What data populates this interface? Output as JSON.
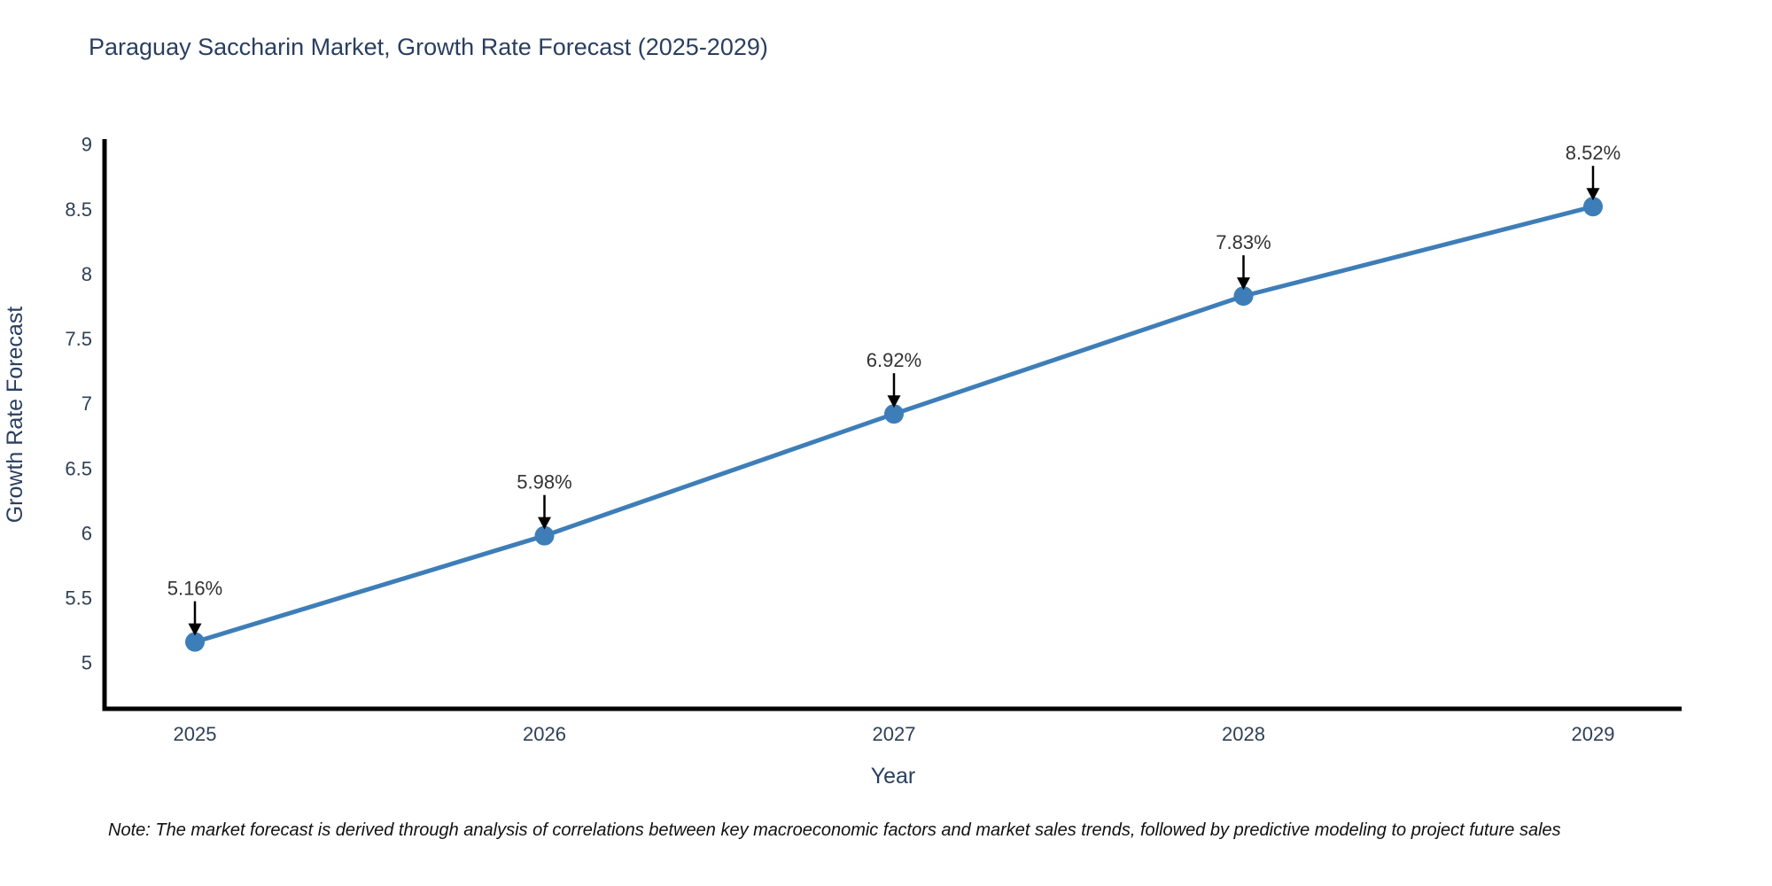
{
  "title": "Paraguay Saccharin Market, Growth Rate Forecast (2025-2029)",
  "note": "Note: The market forecast is derived through analysis of correlations between key macroeconomic factors and market sales trends, followed by predictive modeling to project future sales",
  "chart_data": {
    "type": "line",
    "title": "Paraguay Saccharin Market, Growth Rate Forecast (2025-2029)",
    "x": [
      2025,
      2026,
      2027,
      2028,
      2029
    ],
    "values": [
      5.16,
      5.98,
      6.92,
      7.83,
      8.52
    ],
    "point_labels": [
      "5.16%",
      "5.98%",
      "6.92%",
      "7.83%",
      "8.52%"
    ],
    "xlabel": "Year",
    "ylabel": "Growth Rate Forecast",
    "xtick_labels": [
      "2025",
      "2026",
      "2027",
      "2028",
      "2029"
    ],
    "yticks": [
      5,
      5.5,
      6,
      6.5,
      7,
      7.5,
      8,
      8.5,
      9
    ],
    "ytick_labels": [
      "5",
      "5.5",
      "6",
      "6.5",
      "7",
      "7.5",
      "8",
      "8.5",
      "9"
    ],
    "ylim": [
      4.64,
      9.02
    ],
    "xlim": [
      2024.74,
      2029.25
    ],
    "grid": false,
    "legend": false,
    "colors": {
      "line": "#3E7EB8",
      "marker": "#3E7EB8",
      "axis": "#000000",
      "title_text": "#2A3F5F",
      "tick_text": "#2F4056",
      "annotation_text": "#333333",
      "annotation_arrow": "#000000"
    }
  }
}
